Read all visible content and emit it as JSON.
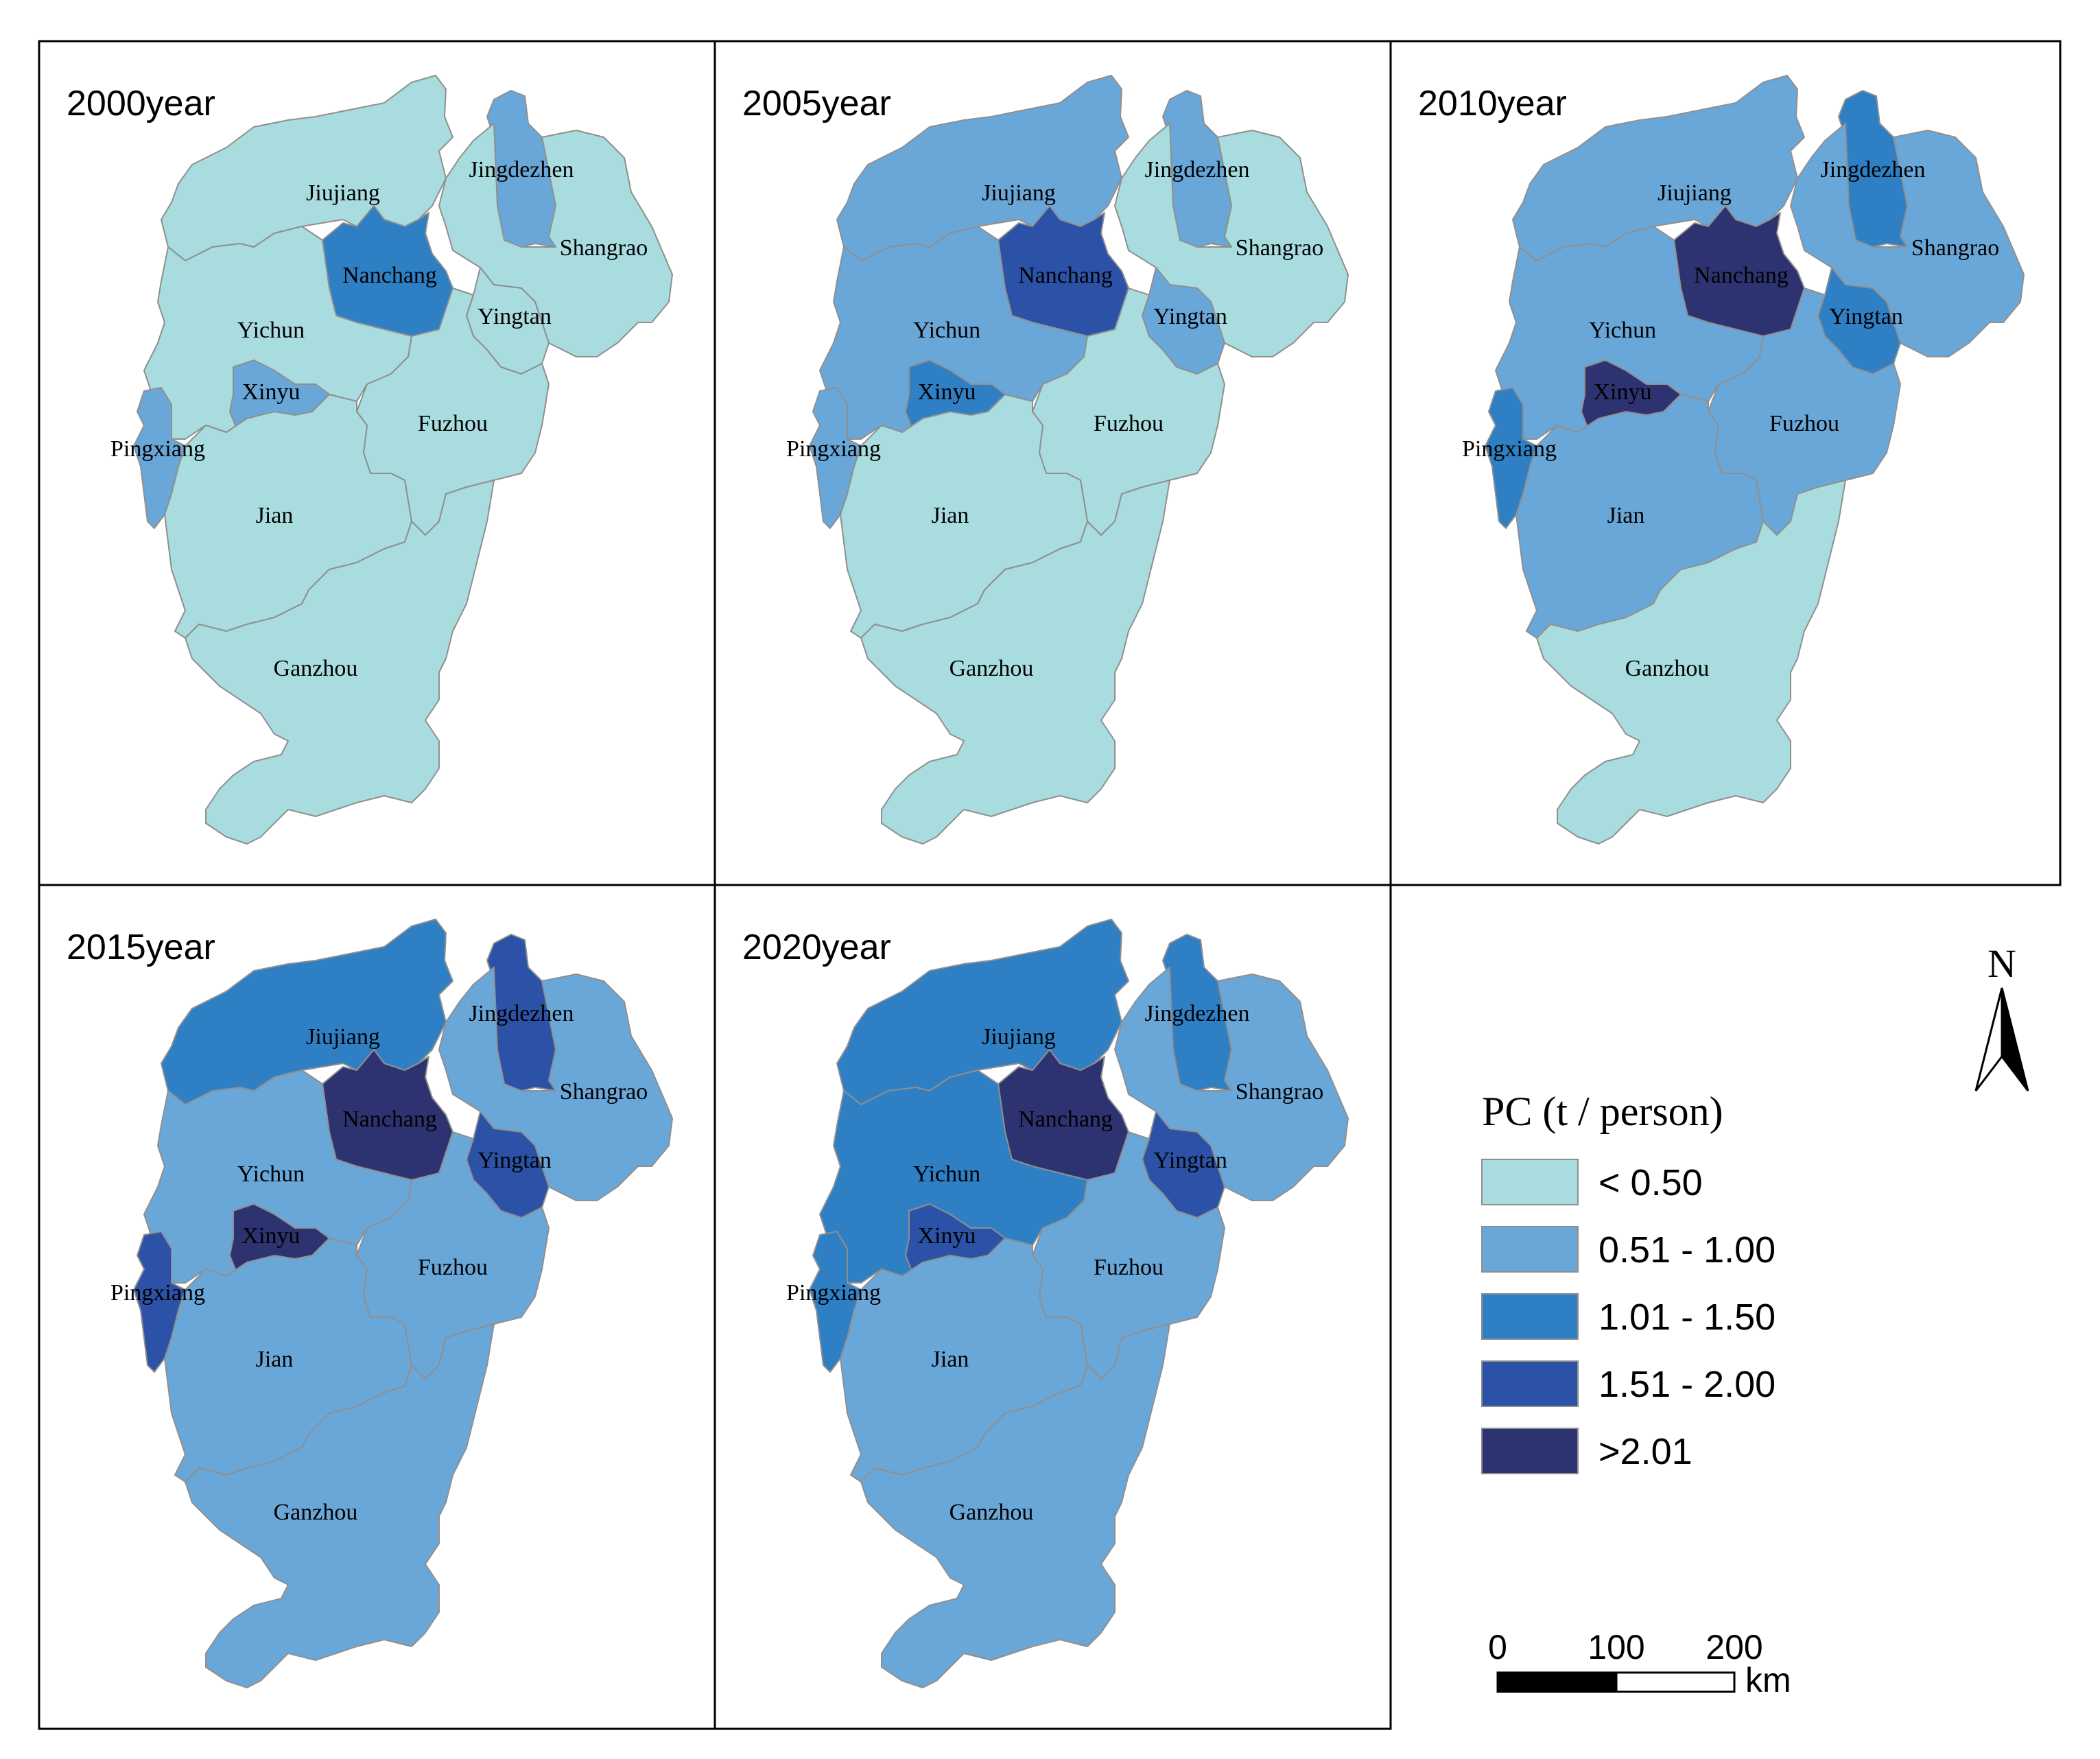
{
  "colors": {
    "class0": "#a8dcdf",
    "class1": "#6aa7d9",
    "class2": "#2f7fc5",
    "class3": "#2b52a6",
    "class4": "#2d3270",
    "border": "#8f8f8f",
    "frame": "#000000"
  },
  "maps": [
    {
      "title": "2000year",
      "classes": {
        "Jiujiang": 0,
        "Jingdezhen": 1,
        "Shangrao": 0,
        "Nanchang": 2,
        "Yingtan": 0,
        "Yichun": 0,
        "Xinyu": 1,
        "Pingxiang": 1,
        "Fuzhou": 0,
        "Jian": 0,
        "Ganzhou": 0
      }
    },
    {
      "title": "2005year",
      "classes": {
        "Jiujiang": 1,
        "Jingdezhen": 1,
        "Shangrao": 0,
        "Nanchang": 3,
        "Yingtan": 1,
        "Yichun": 1,
        "Xinyu": 2,
        "Pingxiang": 1,
        "Fuzhou": 0,
        "Jian": 0,
        "Ganzhou": 0
      }
    },
    {
      "title": "2010year",
      "classes": {
        "Jiujiang": 1,
        "Jingdezhen": 2,
        "Shangrao": 1,
        "Nanchang": 4,
        "Yingtan": 2,
        "Yichun": 1,
        "Xinyu": 4,
        "Pingxiang": 2,
        "Fuzhou": 1,
        "Jian": 1,
        "Ganzhou": 0
      }
    },
    {
      "title": "2015year",
      "classes": {
        "Jiujiang": 2,
        "Jingdezhen": 3,
        "Shangrao": 1,
        "Nanchang": 4,
        "Yingtan": 3,
        "Yichun": 1,
        "Xinyu": 4,
        "Pingxiang": 3,
        "Fuzhou": 1,
        "Jian": 1,
        "Ganzhou": 1
      }
    },
    {
      "title": "2020year",
      "classes": {
        "Jiujiang": 2,
        "Jingdezhen": 2,
        "Shangrao": 1,
        "Nanchang": 4,
        "Yingtan": 3,
        "Yichun": 2,
        "Xinyu": 3,
        "Pingxiang": 2,
        "Fuzhou": 1,
        "Jian": 1,
        "Ganzhou": 1
      }
    }
  ],
  "legend": {
    "title": "PC (t / person)",
    "items": [
      "< 0.50",
      "0.51 - 1.00",
      "1.01 - 1.50",
      "1.51 - 2.00",
      ">2.01"
    ]
  },
  "north_arrow": {
    "label": "N"
  },
  "scale_bar": {
    "ticks": [
      "0",
      "100",
      "200"
    ],
    "unit": "km"
  }
}
